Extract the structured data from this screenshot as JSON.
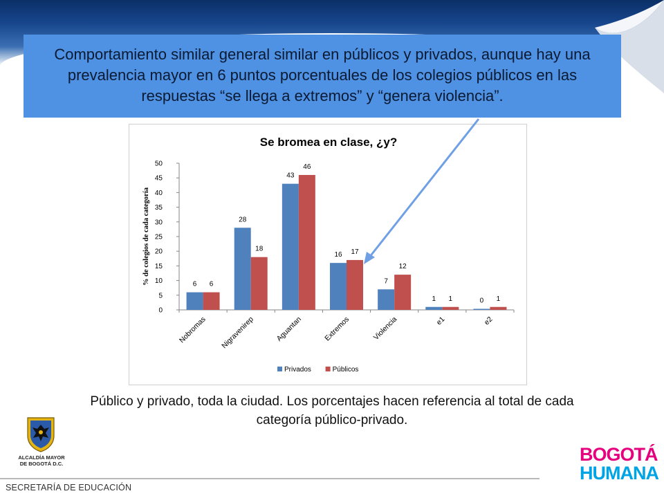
{
  "slide": {
    "callout_text": "Comportamiento similar general similar en públicos y privados, aunque hay una prevalencia mayor en 6 puntos porcentuales de los colegios públicos en las respuestas “se llega a extremos” y “genera violencia”.",
    "caption": "Público y privado, toda la ciudad. Los porcentajes hacen referencia al total de cada categoría público-privado.",
    "footer": "SECRETARÍA DE EDUCACIÓN",
    "crest_title_1": "ALCALDÍA MAYOR",
    "crest_title_2": "DE BOGOTÁ D.C.",
    "brand_line1": "BOGOTÁ",
    "brand_line2": "HUMANA"
  },
  "colors": {
    "privados": "#4f81bd",
    "publicos": "#c0504d",
    "callout_bg": "#4f92e3",
    "arrow": "#6fa0e6"
  },
  "chart_data": {
    "type": "bar",
    "title": "Se bromea en clase, ¿y?",
    "ylabel": "% de colegios de cada categoría",
    "xlabel": "",
    "categories": [
      "Nobromas",
      "Nigravenirep",
      "Aguantan",
      "Extremos",
      "Violencia",
      "e1",
      "e2"
    ],
    "series": [
      {
        "name": "Privados",
        "values": [
          6,
          28,
          43,
          16,
          7,
          1,
          0
        ],
        "labels": [
          "6",
          "28",
          "43",
          "16",
          "7",
          "1",
          "0"
        ]
      },
      {
        "name": "Públicos",
        "values": [
          6,
          18,
          46,
          17,
          12,
          1,
          1
        ],
        "labels": [
          "6",
          "18",
          "46",
          "17",
          "12",
          "1",
          "1"
        ]
      }
    ],
    "ylim": [
      0,
      50
    ],
    "yticks": [
      "0",
      "5",
      "10",
      "15",
      "20",
      "25",
      "30",
      "35",
      "40",
      "45",
      "50"
    ],
    "grid": false,
    "legend": "bottom"
  }
}
